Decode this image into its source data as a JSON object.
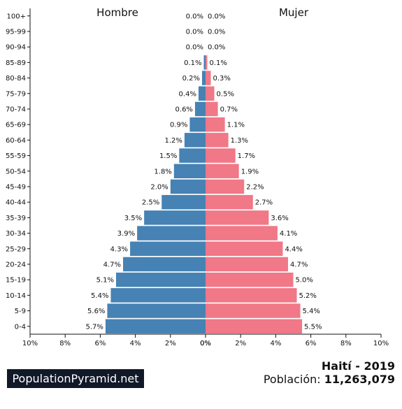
{
  "chart_data": {
    "type": "bar",
    "subtype": "population-pyramid",
    "left_title": "Hombre",
    "right_title": "Mujer",
    "categories": [
      "0-4",
      "5-9",
      "10-14",
      "15-19",
      "20-24",
      "25-29",
      "30-34",
      "35-39",
      "40-44",
      "45-49",
      "50-54",
      "55-59",
      "60-64",
      "65-69",
      "70-74",
      "75-79",
      "80-84",
      "85-89",
      "90-94",
      "95-99",
      "100+"
    ],
    "series": [
      {
        "name": "Hombre",
        "color": "#4682b4",
        "values": [
          5.7,
          5.6,
          5.4,
          5.1,
          4.7,
          4.3,
          3.9,
          3.5,
          2.5,
          2.0,
          1.8,
          1.5,
          1.2,
          0.9,
          0.6,
          0.4,
          0.2,
          0.1,
          0.0,
          0.0,
          0.0
        ]
      },
      {
        "name": "Mujer",
        "color": "#f07887",
        "values": [
          5.5,
          5.4,
          5.2,
          5.0,
          4.7,
          4.4,
          4.1,
          3.6,
          2.7,
          2.2,
          1.9,
          1.7,
          1.3,
          1.1,
          0.7,
          0.5,
          0.3,
          0.1,
          0.0,
          0.0,
          0.0
        ]
      }
    ],
    "value_unit": "%",
    "xlim": [
      0,
      10
    ],
    "left_ticks": [
      "10%",
      "8%",
      "6%",
      "4%",
      "2%",
      "0%"
    ],
    "right_ticks": [
      "0%",
      "2%",
      "4%",
      "6%",
      "8%",
      "10%"
    ],
    "grid": false
  },
  "footer": {
    "brand": "PopulationPyramid.net",
    "location": "Haití - 2019",
    "population_label": "Población:",
    "population_value": "11,263,079"
  }
}
